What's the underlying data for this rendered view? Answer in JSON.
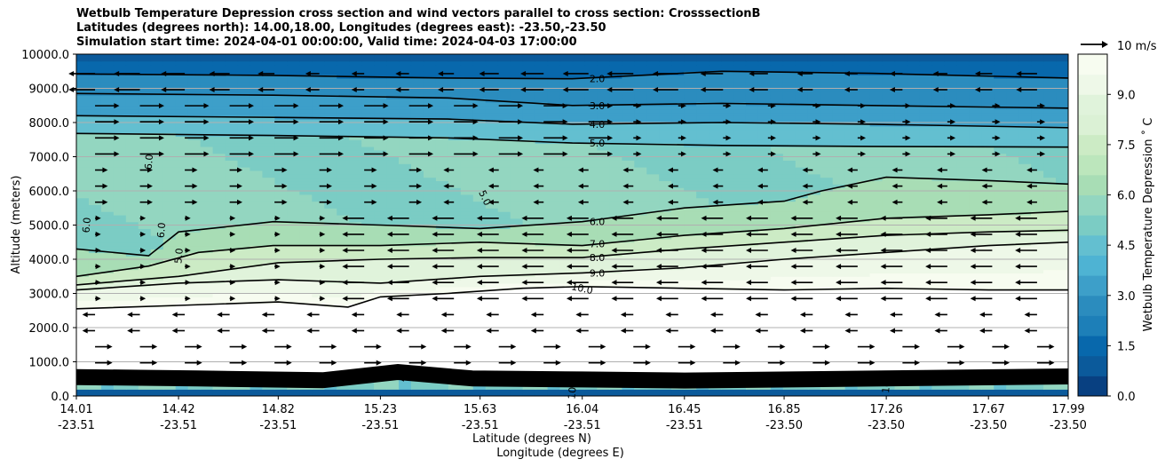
{
  "header": {
    "title_line1": "Wetbulb Temperature Depression cross section and wind vectors parallel to cross section: CrosssectionB",
    "title_line2": "Latitudes (degrees north): 14.00,18.00, Longitudes (degrees east): -23.50,-23.50",
    "title_line3": "Simulation start time: 2024-04-01 00:00:00, Valid time: 2024-04-03 17:00:00"
  },
  "colors": {
    "colormap": [
      "#084081",
      "#0b5a9b",
      "#0868ac",
      "#1d7fb8",
      "#2b8cbe",
      "#3d9fc9",
      "#4eb3d3",
      "#63bfd0",
      "#7bccc4",
      "#93d6c0",
      "#a8ddb5",
      "#bce6bc",
      "#ccebc5",
      "#dbf1d5",
      "#e0f3db",
      "#eef8e8",
      "#f7fcf0"
    ],
    "contour": "#000000",
    "grid": "#b0b0b0"
  },
  "chart_data": {
    "type": "heatmap",
    "title": "Wetbulb Temperature Depression cross section and wind vectors parallel to cross section: CrosssectionB",
    "xlabel": "Latitude (degrees N)",
    "xlabel2": "Longitude (degrees E)",
    "ylabel": "Altitude (meters)",
    "ylim": [
      0,
      10000
    ],
    "xlim": [
      14.01,
      17.99
    ],
    "x_ticks": [
      14.01,
      14.42,
      14.82,
      15.23,
      15.63,
      16.04,
      16.45,
      16.85,
      17.26,
      17.67,
      17.99
    ],
    "x_tick_labels_lat": [
      "14.01",
      "14.42",
      "14.82",
      "15.23",
      "15.63",
      "16.04",
      "16.45",
      "16.85",
      "17.26",
      "17.67",
      "17.99"
    ],
    "x_tick_labels_lon": [
      "-23.51",
      "-23.51",
      "-23.51",
      "-23.51",
      "-23.51",
      "-23.51",
      "-23.51",
      "-23.50",
      "-23.50",
      "-23.50",
      "-23.50"
    ],
    "y_ticks": [
      0,
      1000,
      2000,
      3000,
      4000,
      5000,
      6000,
      7000,
      8000,
      9000,
      10000
    ],
    "y_tick_labels": [
      "0.0",
      "1000.0",
      "2000.0",
      "3000.0",
      "4000.0",
      "5000.0",
      "6000.0",
      "7000.0",
      "8000.0",
      "9000.0",
      "10000.0"
    ],
    "colorbar": {
      "label": "Wetbulb Temperature Depression ˚ C",
      "range": [
        0,
        10.2
      ],
      "ticks": [
        0.0,
        1.5,
        3.0,
        4.5,
        6.0,
        7.5,
        9.0
      ],
      "tick_labels": [
        "0.0",
        "1.5",
        "3.0",
        "4.5",
        "6.0",
        "7.5",
        "9.0"
      ]
    },
    "quiver_key": {
      "label": "10 m/s",
      "value": 10
    },
    "contour_labels": [
      "2.0",
      "3.0",
      "4.0",
      "5.0",
      "6.0",
      "7.0",
      "8.0",
      "9.0",
      "10.0",
      "5.0",
      "6.0",
      "6.0",
      "6.0",
      "5.0",
      "10.0",
      "10.0"
    ],
    "contours": [
      {
        "level": 2.0,
        "points": [
          [
            14.01,
            9420
          ],
          [
            14.8,
            9380
          ],
          [
            15.5,
            9300
          ],
          [
            16.0,
            9280
          ],
          [
            16.6,
            9500
          ],
          [
            17.2,
            9440
          ],
          [
            17.99,
            9300
          ]
        ]
      },
      {
        "level": 3.0,
        "points": [
          [
            14.01,
            8850
          ],
          [
            14.8,
            8800
          ],
          [
            15.5,
            8720
          ],
          [
            16.0,
            8500
          ],
          [
            16.6,
            8560
          ],
          [
            17.2,
            8500
          ],
          [
            17.99,
            8420
          ]
        ]
      },
      {
        "level": 4.0,
        "points": [
          [
            14.01,
            8200
          ],
          [
            14.8,
            8150
          ],
          [
            15.5,
            8100
          ],
          [
            16.0,
            7950
          ],
          [
            16.6,
            8000
          ],
          [
            17.2,
            7950
          ],
          [
            17.99,
            7850
          ]
        ]
      },
      {
        "level": 5.0,
        "points": [
          [
            14.01,
            7680
          ],
          [
            14.8,
            7620
          ],
          [
            15.5,
            7550
          ],
          [
            16.0,
            7400
          ],
          [
            16.6,
            7330
          ],
          [
            17.2,
            7300
          ],
          [
            17.99,
            7280
          ]
        ]
      },
      {
        "level": 6.0,
        "points": [
          [
            14.01,
            4300
          ],
          [
            14.3,
            4100
          ],
          [
            14.42,
            4800
          ],
          [
            14.8,
            5100
          ],
          [
            15.23,
            5000
          ],
          [
            15.63,
            4900
          ],
          [
            16.04,
            5100
          ],
          [
            16.45,
            5500
          ],
          [
            16.85,
            5700
          ],
          [
            17.0,
            6000
          ],
          [
            17.26,
            6400
          ],
          [
            17.67,
            6300
          ],
          [
            17.99,
            6200
          ]
        ]
      },
      {
        "level": 7.0,
        "points": [
          [
            14.01,
            3500
          ],
          [
            14.3,
            3800
          ],
          [
            14.5,
            4200
          ],
          [
            14.8,
            4400
          ],
          [
            15.23,
            4400
          ],
          [
            15.63,
            4500
          ],
          [
            16.04,
            4400
          ],
          [
            16.45,
            4700
          ],
          [
            16.85,
            4900
          ],
          [
            17.26,
            5200
          ],
          [
            17.67,
            5300
          ],
          [
            17.99,
            5400
          ]
        ]
      },
      {
        "level": 8.0,
        "points": [
          [
            14.01,
            3250
          ],
          [
            14.42,
            3500
          ],
          [
            14.82,
            3900
          ],
          [
            15.23,
            4000
          ],
          [
            15.63,
            4050
          ],
          [
            16.04,
            4050
          ],
          [
            16.45,
            4300
          ],
          [
            16.85,
            4500
          ],
          [
            17.26,
            4700
          ],
          [
            17.67,
            4800
          ],
          [
            17.99,
            4850
          ]
        ]
      },
      {
        "level": 9.0,
        "points": [
          [
            14.01,
            3100
          ],
          [
            14.42,
            3300
          ],
          [
            14.82,
            3400
          ],
          [
            15.23,
            3300
          ],
          [
            15.63,
            3500
          ],
          [
            16.04,
            3600
          ],
          [
            16.45,
            3750
          ],
          [
            16.85,
            4000
          ],
          [
            17.26,
            4200
          ],
          [
            17.67,
            4400
          ],
          [
            17.99,
            4500
          ]
        ]
      },
      {
        "level": 10.0,
        "points": [
          [
            14.01,
            2550
          ],
          [
            14.42,
            2650
          ],
          [
            14.82,
            2750
          ],
          [
            15.1,
            2600
          ],
          [
            15.23,
            2900
          ],
          [
            15.5,
            3000
          ],
          [
            15.8,
            3150
          ],
          [
            16.04,
            3200
          ],
          [
            16.45,
            3150
          ],
          [
            16.85,
            3100
          ],
          [
            17.26,
            3150
          ],
          [
            17.67,
            3100
          ],
          [
            17.99,
            3100
          ]
        ]
      }
    ]
  }
}
